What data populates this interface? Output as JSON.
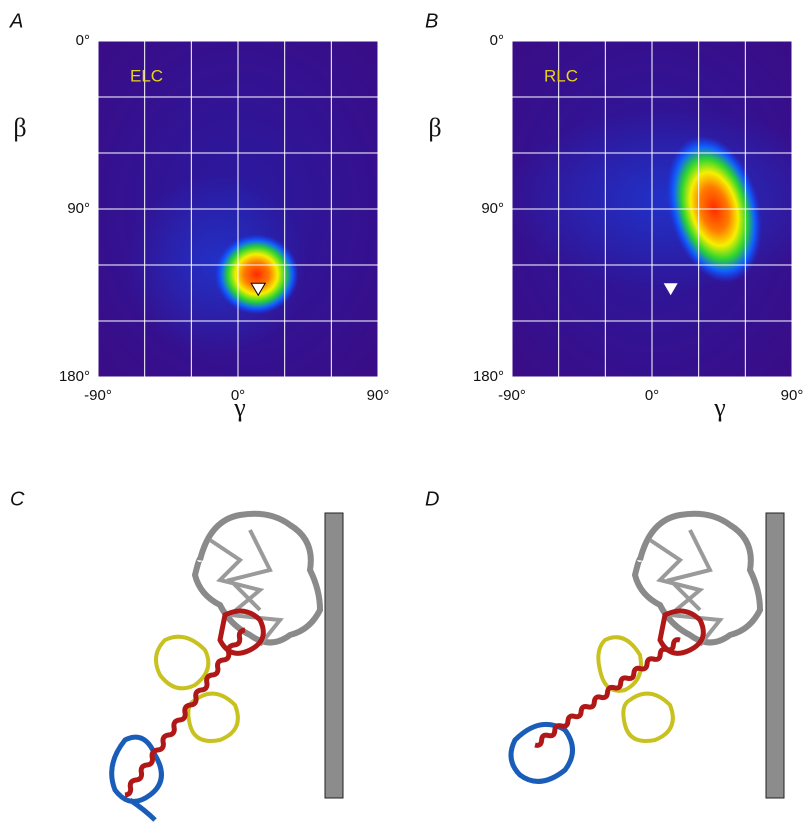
{
  "chart_data": [
    {
      "type": "heatmap",
      "panel": "A",
      "annotation": "ELC",
      "xlabel": "γ",
      "ylabel": "β",
      "xlim": [
        -90,
        90
      ],
      "ylim": [
        0,
        180
      ],
      "xticks": [
        {
          "value": -90,
          "label": "-90°"
        },
        {
          "value": 0,
          "label": "0°"
        },
        {
          "value": 90,
          "label": "90°"
        }
      ],
      "yticks": [
        {
          "value": 0,
          "label": "0°"
        },
        {
          "value": 90,
          "label": "90°"
        },
        {
          "value": 180,
          "label": "180°"
        }
      ],
      "xgrid": [
        -60,
        -30,
        30,
        60
      ],
      "ygrid": [
        30,
        60,
        120,
        150
      ],
      "peak": {
        "x": 12,
        "y": 125
      },
      "marker": {
        "x": 13,
        "y": 133
      }
    },
    {
      "type": "heatmap",
      "panel": "B",
      "annotation": "RLC",
      "xlabel": "γ",
      "ylabel": "β",
      "xlim": [
        -90,
        90
      ],
      "ylim": [
        0,
        180
      ],
      "xticks": [
        {
          "value": -90,
          "label": "-90°"
        },
        {
          "value": 0,
          "label": "0°"
        },
        {
          "value": 90,
          "label": "90°"
        }
      ],
      "yticks": [
        {
          "value": 0,
          "label": "0°"
        },
        {
          "value": 90,
          "label": "90°"
        },
        {
          "value": 180,
          "label": "180°"
        }
      ],
      "xgrid": [
        -60,
        -30,
        30,
        60
      ],
      "ygrid": [
        30,
        60,
        120,
        150
      ],
      "peak": {
        "x": 40,
        "y": 90
      },
      "marker": {
        "x": 12,
        "y": 133
      }
    }
  ],
  "structures": [
    {
      "panel": "C"
    },
    {
      "panel": "D"
    }
  ]
}
